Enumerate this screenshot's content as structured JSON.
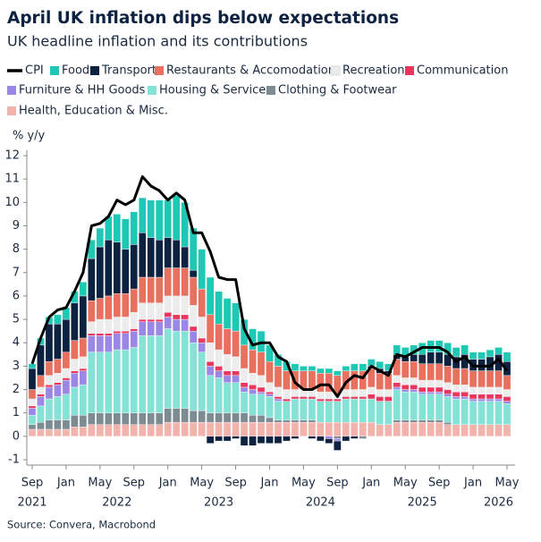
{
  "chart_data": {
    "type": "stacked-bar-line",
    "title": "April UK inflation dips below expectations",
    "subtitle": "UK headline inflation and its contributions",
    "y_label": "% y/y",
    "source": "Source: Convera, Macrobond",
    "categories": [
      "Sep",
      null,
      null,
      null,
      "Jan",
      null,
      null,
      null,
      "May",
      null,
      null,
      null,
      "Sep",
      null,
      null,
      null,
      "Jan",
      null,
      null,
      null,
      "May",
      null,
      null,
      null,
      "Sep",
      null,
      null,
      null,
      "Jan",
      null,
      null,
      null,
      "May",
      null,
      null,
      null,
      "Sep",
      null,
      null,
      null,
      "Jan",
      null,
      null,
      null,
      "May",
      null,
      null,
      null,
      "Sep",
      null,
      null,
      null,
      "Jan",
      null,
      null,
      null,
      "May"
    ],
    "category_years": [
      "2021",
      null,
      null,
      null,
      null,
      null,
      null,
      null,
      null,
      null,
      "2022",
      null,
      null,
      null,
      null,
      null,
      null,
      null,
      null,
      null,
      null,
      null,
      "2023",
      null,
      null,
      null,
      null,
      null,
      null,
      null,
      null,
      null,
      null,
      null,
      "2024",
      null,
      null,
      null,
      null,
      null,
      null,
      null,
      null,
      null,
      null,
      null,
      "2025",
      null,
      null,
      null,
      null,
      null,
      null,
      null,
      null,
      "2026",
      null
    ],
    "ylim": [
      -1.3,
      12.3
    ],
    "yticks": [
      -1,
      0,
      1,
      2,
      3,
      4,
      5,
      6,
      7,
      8,
      9,
      10,
      11,
      12
    ],
    "line": {
      "name": "CPI",
      "color": "#000000",
      "values": [
        3.1,
        4.2,
        5.1,
        5.4,
        5.5,
        6.2,
        7.0,
        9.0,
        9.1,
        9.4,
        10.1,
        9.9,
        10.1,
        11.1,
        10.7,
        10.5,
        10.1,
        10.4,
        10.1,
        8.7,
        8.7,
        7.9,
        6.8,
        6.7,
        6.7,
        4.6,
        3.9,
        4.0,
        4.0,
        3.4,
        3.2,
        2.3,
        2.0,
        2.0,
        2.2,
        2.2,
        1.7,
        2.3,
        2.6,
        2.5,
        3.0,
        2.8,
        2.6,
        3.5,
        3.4,
        3.6,
        3.8,
        3.8,
        3.8,
        3.6,
        3.2,
        3.4,
        3.0,
        3.0,
        3.0,
        3.3,
        2.8
      ]
    },
    "series": [
      {
        "name": "Food",
        "color": "#1ec8b4",
        "values": [
          0.2,
          0.3,
          0.3,
          0.4,
          0.5,
          0.5,
          0.6,
          0.8,
          0.8,
          1.0,
          1.2,
          1.3,
          1.4,
          1.5,
          1.6,
          1.7,
          1.6,
          1.9,
          1.9,
          1.8,
          1.7,
          1.6,
          1.4,
          1.3,
          1.2,
          1.1,
          0.9,
          0.9,
          0.7,
          0.5,
          0.4,
          0.3,
          0.2,
          0.2,
          0.2,
          0.2,
          0.2,
          0.2,
          0.3,
          0.3,
          0.3,
          0.3,
          0.3,
          0.4,
          0.4,
          0.4,
          0.5,
          0.5,
          0.5,
          0.5,
          0.4,
          0.4,
          0.3,
          0.3,
          0.3,
          0.3,
          0.4
        ]
      },
      {
        "name": "Transport",
        "color": "#0d2240",
        "values": [
          0.9,
          1.3,
          1.6,
          1.5,
          1.4,
          1.6,
          1.8,
          1.8,
          2.2,
          2.4,
          2.2,
          1.9,
          1.9,
          1.9,
          1.7,
          1.6,
          1.3,
          1.2,
          0.9,
          0.3,
          0.0,
          -0.3,
          -0.2,
          -0.2,
          -0.1,
          -0.4,
          -0.4,
          -0.3,
          -0.3,
          -0.3,
          -0.2,
          -0.1,
          0.0,
          -0.1,
          -0.2,
          -0.2,
          -0.4,
          -0.2,
          -0.1,
          0.0,
          0.1,
          0.2,
          0.1,
          0.2,
          0.2,
          0.3,
          0.4,
          0.5,
          0.5,
          0.5,
          0.5,
          0.6,
          0.5,
          0.5,
          0.6,
          0.7,
          0.6
        ]
      },
      {
        "name": "Restaurants & Accomodation",
        "color": "#e8705f",
        "values": [
          0.4,
          0.5,
          0.6,
          0.6,
          0.7,
          0.8,
          0.8,
          0.9,
          0.9,
          1.0,
          1.0,
          1.0,
          1.0,
          1.1,
          1.1,
          1.1,
          1.2,
          1.2,
          1.2,
          1.2,
          1.2,
          1.2,
          1.1,
          1.1,
          1.1,
          1.0,
          1.0,
          1.0,
          0.9,
          0.9,
          0.8,
          0.8,
          0.8,
          0.8,
          0.8,
          0.8,
          0.8,
          0.8,
          0.8,
          0.8,
          0.8,
          0.7,
          0.7,
          0.7,
          0.7,
          0.7,
          0.7,
          0.7,
          0.7,
          0.7,
          0.7,
          0.7,
          0.7,
          0.7,
          0.7,
          0.7,
          0.6
        ]
      },
      {
        "name": "Recreation",
        "color": "#ececec",
        "values": [
          0.3,
          0.3,
          0.4,
          0.4,
          0.4,
          0.5,
          0.5,
          0.5,
          0.6,
          0.6,
          0.6,
          0.6,
          0.7,
          0.7,
          0.7,
          0.7,
          0.7,
          0.8,
          0.8,
          0.9,
          0.9,
          0.8,
          0.7,
          0.7,
          0.6,
          0.6,
          0.5,
          0.5,
          0.4,
          0.4,
          0.4,
          0.3,
          0.3,
          0.3,
          0.3,
          0.3,
          0.2,
          0.3,
          0.3,
          0.3,
          0.3,
          0.3,
          0.3,
          0.3,
          0.3,
          0.3,
          0.3,
          0.3,
          0.3,
          0.3,
          0.3,
          0.3,
          0.3,
          0.3,
          0.3,
          0.3,
          0.3
        ]
      },
      {
        "name": "Communication",
        "color": "#e8365d",
        "values": [
          0.1,
          0.1,
          0.1,
          0.1,
          0.1,
          0.1,
          0.1,
          0.1,
          0.1,
          0.1,
          0.1,
          0.1,
          0.1,
          0.1,
          0.1,
          0.1,
          0.2,
          0.2,
          0.2,
          0.2,
          0.2,
          0.2,
          0.2,
          0.2,
          0.2,
          0.2,
          0.2,
          0.2,
          0.1,
          0.1,
          0.1,
          0.1,
          0.1,
          0.1,
          0.1,
          0.1,
          0.1,
          0.1,
          0.1,
          0.1,
          0.2,
          0.2,
          0.2,
          0.2,
          0.2,
          0.2,
          0.2,
          0.2,
          0.2,
          0.2,
          0.2,
          0.2,
          0.2,
          0.2,
          0.2,
          0.2,
          0.2
        ]
      },
      {
        "name": "Furniture & HH Goods",
        "color": "#9b87e6",
        "values": [
          0.3,
          0.4,
          0.5,
          0.5,
          0.6,
          0.6,
          0.6,
          0.7,
          0.7,
          0.7,
          0.7,
          0.7,
          0.7,
          0.6,
          0.6,
          0.6,
          0.5,
          0.5,
          0.5,
          0.5,
          0.4,
          0.4,
          0.3,
          0.3,
          0.3,
          0.2,
          0.2,
          0.1,
          0.1,
          0.1,
          0,
          0,
          0,
          0,
          0,
          -0.1,
          -0.1,
          0,
          0,
          0,
          0,
          0,
          0,
          0.1,
          0.1,
          0.1,
          0.1,
          0.1,
          0.1,
          0.1,
          0.1,
          0.1,
          0.1,
          0.1,
          0.1,
          0.1,
          0.1
        ]
      },
      {
        "name": "Housing & Services",
        "color": "#84e3d6",
        "values": [
          0.4,
          0.7,
          0.9,
          1.0,
          1.1,
          1.2,
          1.3,
          2.6,
          2.6,
          2.6,
          2.7,
          2.7,
          2.8,
          3.3,
          3.3,
          3.3,
          3.4,
          3.3,
          3.3,
          2.9,
          2.5,
          1.6,
          1.5,
          1.3,
          1.3,
          0.9,
          0.9,
          0.9,
          0.9,
          0.8,
          0.8,
          0.9,
          0.9,
          0.9,
          0.9,
          0.9,
          0.9,
          1.0,
          1.0,
          1.0,
          1.0,
          1.0,
          1.0,
          1.3,
          1.2,
          1.2,
          1.1,
          1.1,
          1.1,
          1.1,
          1.1,
          1.1,
          1.0,
          1.0,
          1.0,
          1.0,
          0.9
        ]
      },
      {
        "name": "Clothing & Footwear",
        "color": "#7d8c92",
        "values": [
          0.2,
          0.3,
          0.4,
          0.4,
          0.4,
          0.5,
          0.5,
          0.5,
          0.5,
          0.5,
          0.5,
          0.5,
          0.5,
          0.5,
          0.5,
          0.5,
          0.6,
          0.6,
          0.6,
          0.5,
          0.5,
          0.4,
          0.4,
          0.4,
          0.4,
          0.4,
          0.3,
          0.3,
          0.2,
          0.1,
          0.1,
          0.1,
          0.1,
          0.1,
          0,
          0,
          -0.1,
          0,
          0,
          -0.1,
          0,
          0,
          0,
          0.1,
          0.1,
          0.1,
          0.1,
          0.1,
          0.1,
          0.1,
          0,
          0,
          0,
          0,
          0,
          0,
          0
        ]
      },
      {
        "name": "Health, Education & Misc.",
        "color": "#f2b3ad",
        "values": [
          0.3,
          0.3,
          0.3,
          0.3,
          0.3,
          0.4,
          0.4,
          0.5,
          0.5,
          0.5,
          0.5,
          0.5,
          0.5,
          0.5,
          0.5,
          0.5,
          0.6,
          0.6,
          0.6,
          0.6,
          0.6,
          0.6,
          0.6,
          0.6,
          0.6,
          0.6,
          0.6,
          0.6,
          0.6,
          0.6,
          0.6,
          0.6,
          0.6,
          0.6,
          0.6,
          0.6,
          0.6,
          0.6,
          0.6,
          0.6,
          0.6,
          0.5,
          0.5,
          0.6,
          0.6,
          0.6,
          0.6,
          0.6,
          0.6,
          0.5,
          0.5,
          0.5,
          0.5,
          0.5,
          0.5,
          0.5,
          0.5
        ]
      }
    ]
  }
}
